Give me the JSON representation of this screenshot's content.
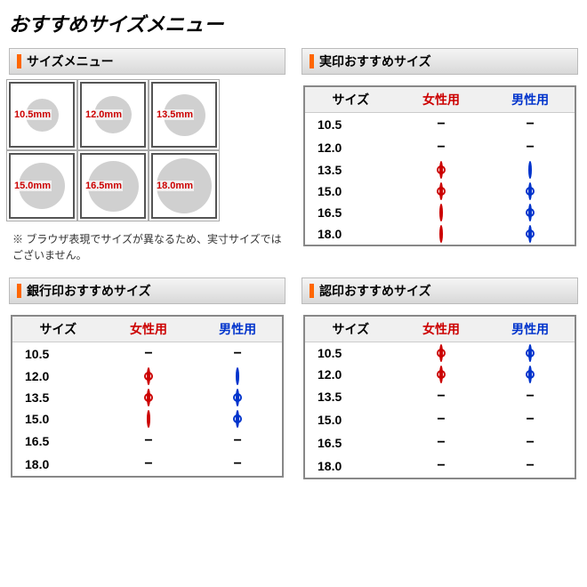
{
  "main_title": "おすすめサイズメニュー",
  "colors": {
    "accent": "#ff6600",
    "female": "#cc0000",
    "male": "#0033cc",
    "circle_fill": "#d0d0d0",
    "box_border": "#555555",
    "header_grad_top": "#f5f5f5",
    "header_grad_bottom": "#d8d8d8",
    "table_border": "#888888"
  },
  "size_menu": {
    "title": "サイズメニュー",
    "boxes": [
      {
        "label": "10.5mm",
        "diameter": 37
      },
      {
        "label": "12.0mm",
        "diameter": 42
      },
      {
        "label": "13.5mm",
        "diameter": 47
      },
      {
        "label": "15.0mm",
        "diameter": 52
      },
      {
        "label": "16.5mm",
        "diameter": 57
      },
      {
        "label": "18.0mm",
        "diameter": 62
      }
    ],
    "note": "※ ブラウザ表現でサイズが異なるため、実寸サイズではございません。"
  },
  "table_headers": {
    "size": "サイズ",
    "female": "女性用",
    "male": "男性用"
  },
  "jitsuin": {
    "title": "実印おすすめサイズ",
    "rows": [
      {
        "size": "10.5",
        "female": "dash",
        "male": "dash"
      },
      {
        "size": "12.0",
        "female": "dash",
        "male": "dash"
      },
      {
        "size": "13.5",
        "female": "double",
        "male": "single"
      },
      {
        "size": "15.0",
        "female": "double",
        "male": "double"
      },
      {
        "size": "16.5",
        "female": "single",
        "male": "double"
      },
      {
        "size": "18.0",
        "female": "single",
        "male": "double"
      }
    ]
  },
  "ginkoin": {
    "title": "銀行印おすすめサイズ",
    "rows": [
      {
        "size": "10.5",
        "female": "dash",
        "male": "dash"
      },
      {
        "size": "12.0",
        "female": "double",
        "male": "single"
      },
      {
        "size": "13.5",
        "female": "double",
        "male": "double"
      },
      {
        "size": "15.0",
        "female": "single",
        "male": "double"
      },
      {
        "size": "16.5",
        "female": "dash",
        "male": "dash"
      },
      {
        "size": "18.0",
        "female": "dash",
        "male": "dash"
      }
    ]
  },
  "mitomein": {
    "title": "認印おすすめサイズ",
    "rows": [
      {
        "size": "10.5",
        "female": "double",
        "male": "double"
      },
      {
        "size": "12.0",
        "female": "double",
        "male": "double"
      },
      {
        "size": "13.5",
        "female": "dash",
        "male": "dash"
      },
      {
        "size": "15.0",
        "female": "dash",
        "male": "dash"
      },
      {
        "size": "16.5",
        "female": "dash",
        "male": "dash"
      },
      {
        "size": "18.0",
        "female": "dash",
        "male": "dash"
      }
    ]
  }
}
